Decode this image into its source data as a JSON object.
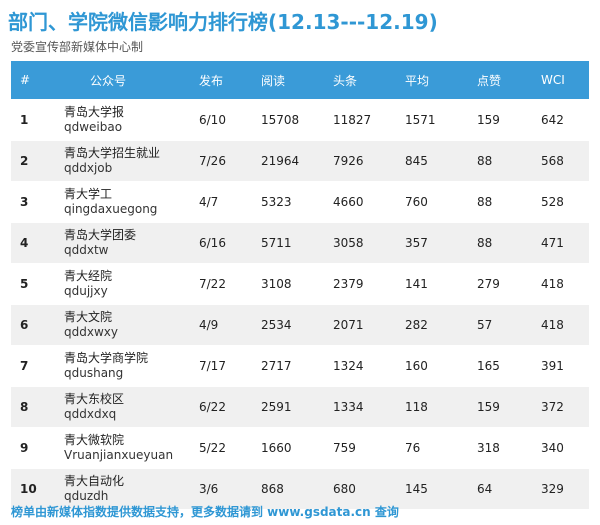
{
  "title": "部门、学院微信影响力排行榜(12.13---12.19)",
  "subtitle": "党委宣传部新媒体中心制",
  "columns": [
    "#",
    "公众号",
    "发布",
    "阅读",
    "头条",
    "平均",
    "点赞",
    "WCI"
  ],
  "rows": [
    {
      "rank": "1",
      "name": "青岛大学报",
      "id": "qdweibao",
      "publish": "6/10",
      "read": "15708",
      "headline": "11827",
      "avg": "1571",
      "likes": "159",
      "wci": "642"
    },
    {
      "rank": "2",
      "name": "青岛大学招生就业",
      "id": "qddxjob",
      "publish": "7/26",
      "read": "21964",
      "headline": "7926",
      "avg": "845",
      "likes": "88",
      "wci": "568"
    },
    {
      "rank": "3",
      "name": "青大学工",
      "id": "qingdaxuegong",
      "publish": "4/7",
      "read": "5323",
      "headline": "4660",
      "avg": "760",
      "likes": "88",
      "wci": "528"
    },
    {
      "rank": "4",
      "name": "青岛大学团委",
      "id": "qddxtw",
      "publish": "6/16",
      "read": "5711",
      "headline": "3058",
      "avg": "357",
      "likes": "88",
      "wci": "471"
    },
    {
      "rank": "5",
      "name": "青大经院",
      "id": "qdujjxy",
      "publish": "7/22",
      "read": "3108",
      "headline": "2379",
      "avg": "141",
      "likes": "279",
      "wci": "418"
    },
    {
      "rank": "6",
      "name": "青大文院",
      "id": "qddxwxy",
      "publish": "4/9",
      "read": "2534",
      "headline": "2071",
      "avg": "282",
      "likes": "57",
      "wci": "418"
    },
    {
      "rank": "7",
      "name": "青岛大学商学院",
      "id": "qdushang",
      "publish": "7/17",
      "read": "2717",
      "headline": "1324",
      "avg": "160",
      "likes": "165",
      "wci": "391"
    },
    {
      "rank": "8",
      "name": "青大东校区",
      "id": "qddxdxq",
      "publish": "6/22",
      "read": "2591",
      "headline": "1334",
      "avg": "118",
      "likes": "159",
      "wci": "372"
    },
    {
      "rank": "9",
      "name": "青大微软院",
      "id": "Vruanjianxueyuan",
      "publish": "5/22",
      "read": "1660",
      "headline": "759",
      "avg": "76",
      "likes": "318",
      "wci": "340"
    },
    {
      "rank": "10",
      "name": "青大自动化",
      "id": "qduzdh",
      "publish": "3/6",
      "read": "868",
      "headline": "680",
      "avg": "145",
      "likes": "64",
      "wci": "329"
    }
  ],
  "footer": "榜单由新媒体指数提供数据支持，更多数据请到 www.gsdata.cn 查询",
  "colors": {
    "accent": "#2f97d4",
    "header_bg": "#3a9bd8",
    "stripe": "#f0f0f0"
  }
}
